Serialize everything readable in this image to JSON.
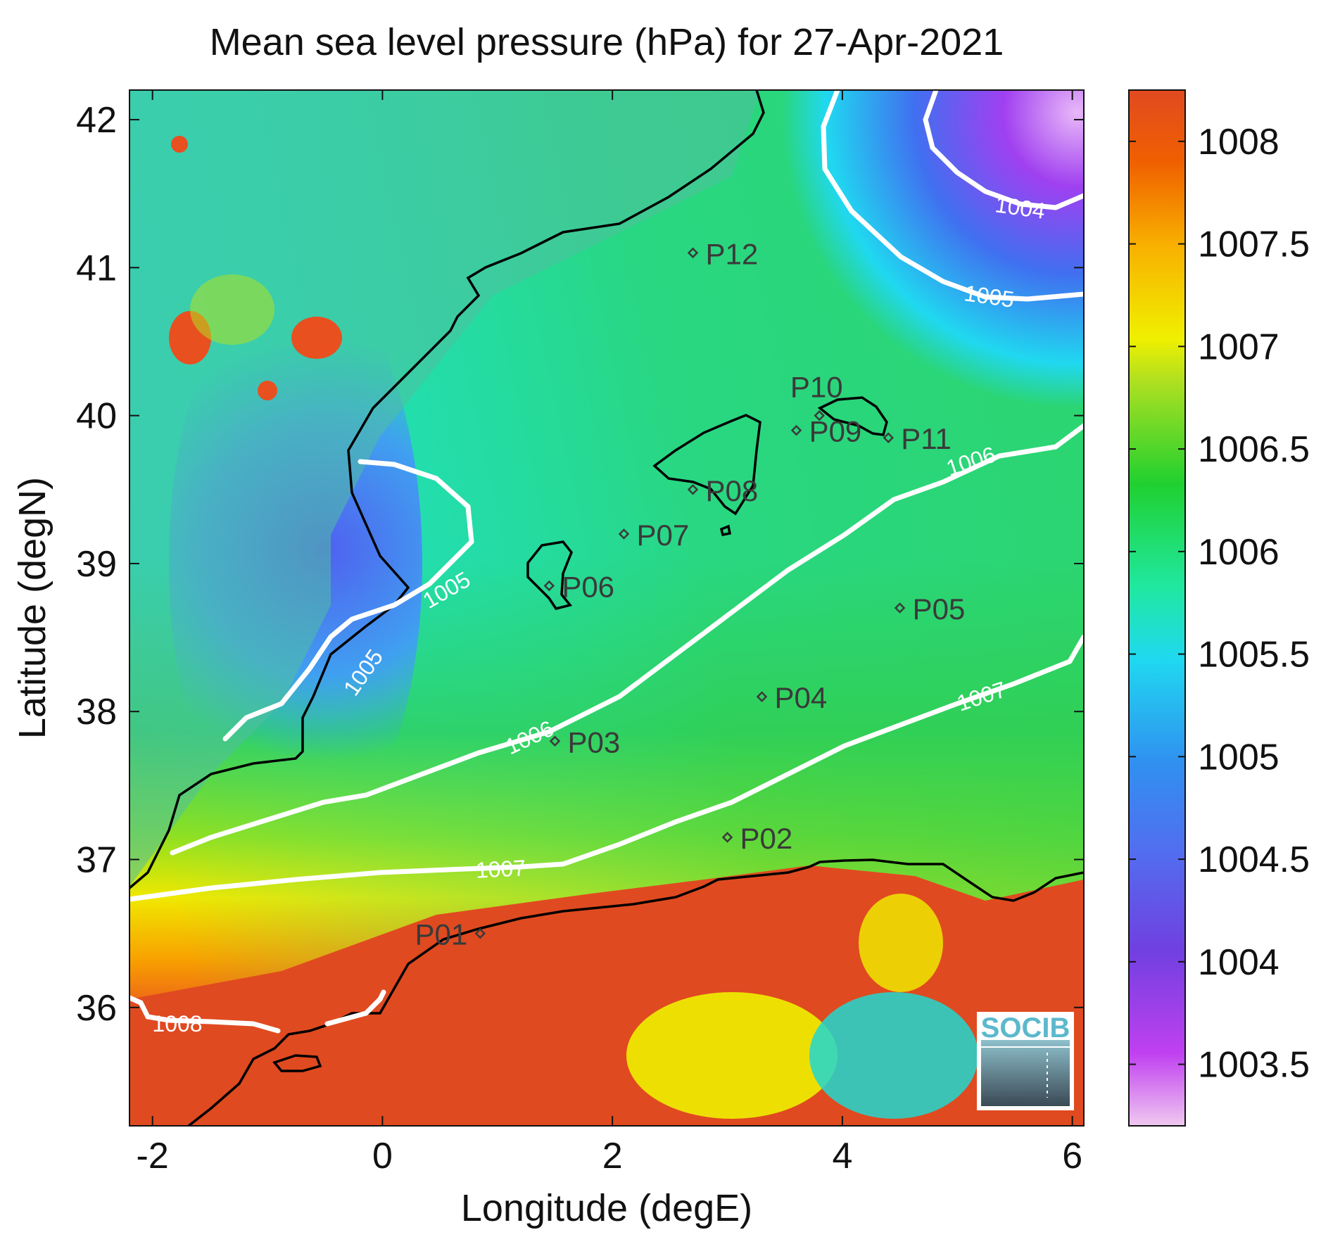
{
  "chart_data": {
    "type": "heatmap",
    "title": "Mean sea level pressure (hPa) for 27-Apr-2021",
    "xlabel": "Longitude (degE)",
    "ylabel": "Latitude (degN)",
    "xlim": [
      -2.2,
      6.1
    ],
    "ylim": [
      35.2,
      42.2
    ],
    "x_ticks": [
      {
        "value": -2,
        "label": "-2"
      },
      {
        "value": 0,
        "label": "0"
      },
      {
        "value": 2,
        "label": "2"
      },
      {
        "value": 4,
        "label": "4"
      },
      {
        "value": 6,
        "label": "6"
      }
    ],
    "y_ticks": [
      {
        "value": 36,
        "label": "36"
      },
      {
        "value": 37,
        "label": "37"
      },
      {
        "value": 38,
        "label": "38"
      },
      {
        "value": 39,
        "label": "39"
      },
      {
        "value": 40,
        "label": "40"
      },
      {
        "value": 41,
        "label": "41"
      },
      {
        "value": 42,
        "label": "42"
      }
    ],
    "colorbar": {
      "range": [
        1003.2,
        1008.25
      ],
      "ticks": [
        {
          "value": 1003.5,
          "label": "1003.5"
        },
        {
          "value": 1004,
          "label": "1004"
        },
        {
          "value": 1004.5,
          "label": "1004.5"
        },
        {
          "value": 1005,
          "label": "1005"
        },
        {
          "value": 1005.5,
          "label": "1005.5"
        },
        {
          "value": 1006,
          "label": "1006"
        },
        {
          "value": 1006.5,
          "label": "1006.5"
        },
        {
          "value": 1007,
          "label": "1007"
        },
        {
          "value": 1007.5,
          "label": "1007.5"
        },
        {
          "value": 1008,
          "label": "1008"
        }
      ],
      "colors": [
        "#f0c8f0",
        "#c040f0",
        "#7040e0",
        "#4080f0",
        "#20d0f0",
        "#20e8a0",
        "#20d030",
        "#b0e020",
        "#f0f000",
        "#f8b000",
        "#f06000",
        "#e04a20"
      ]
    },
    "contour_labels": [
      {
        "label": "1004",
        "lon": 5.0,
        "lat": 41.4
      },
      {
        "label": "1005",
        "lon": 4.5,
        "lat": 40.8
      },
      {
        "label": "1005",
        "lon": 0.6,
        "lat": 38.8
      },
      {
        "label": "1005",
        "lon": -0.2,
        "lat": 38.2
      },
      {
        "label": "1006",
        "lon": 4.7,
        "lat": 39.7
      },
      {
        "label": "1006",
        "lon": 1.3,
        "lat": 37.9
      },
      {
        "label": "1007",
        "lon": 4.8,
        "lat": 38.1
      },
      {
        "label": "1007",
        "lon": 1.0,
        "lat": 36.9
      },
      {
        "label": "1008",
        "lon": -1.8,
        "lat": 35.8
      }
    ],
    "stations": [
      {
        "id": "P01",
        "lon": 0.85,
        "lat": 36.5
      },
      {
        "id": "P02",
        "lon": 3.0,
        "lat": 37.15
      },
      {
        "id": "P03",
        "lon": 1.5,
        "lat": 37.8
      },
      {
        "id": "P04",
        "lon": 3.3,
        "lat": 38.1
      },
      {
        "id": "P05",
        "lon": 4.5,
        "lat": 38.7
      },
      {
        "id": "P06",
        "lon": 1.45,
        "lat": 38.85
      },
      {
        "id": "P07",
        "lon": 2.1,
        "lat": 39.2
      },
      {
        "id": "P08",
        "lon": 2.7,
        "lat": 39.5
      },
      {
        "id": "P09",
        "lon": 3.6,
        "lat": 39.9
      },
      {
        "id": "P10",
        "lon": 3.8,
        "lat": 40.0
      },
      {
        "id": "P11",
        "lon": 4.4,
        "lat": 39.85
      },
      {
        "id": "P12",
        "lon": 2.7,
        "lat": 41.1
      }
    ],
    "logo_text": "SOCIB"
  }
}
